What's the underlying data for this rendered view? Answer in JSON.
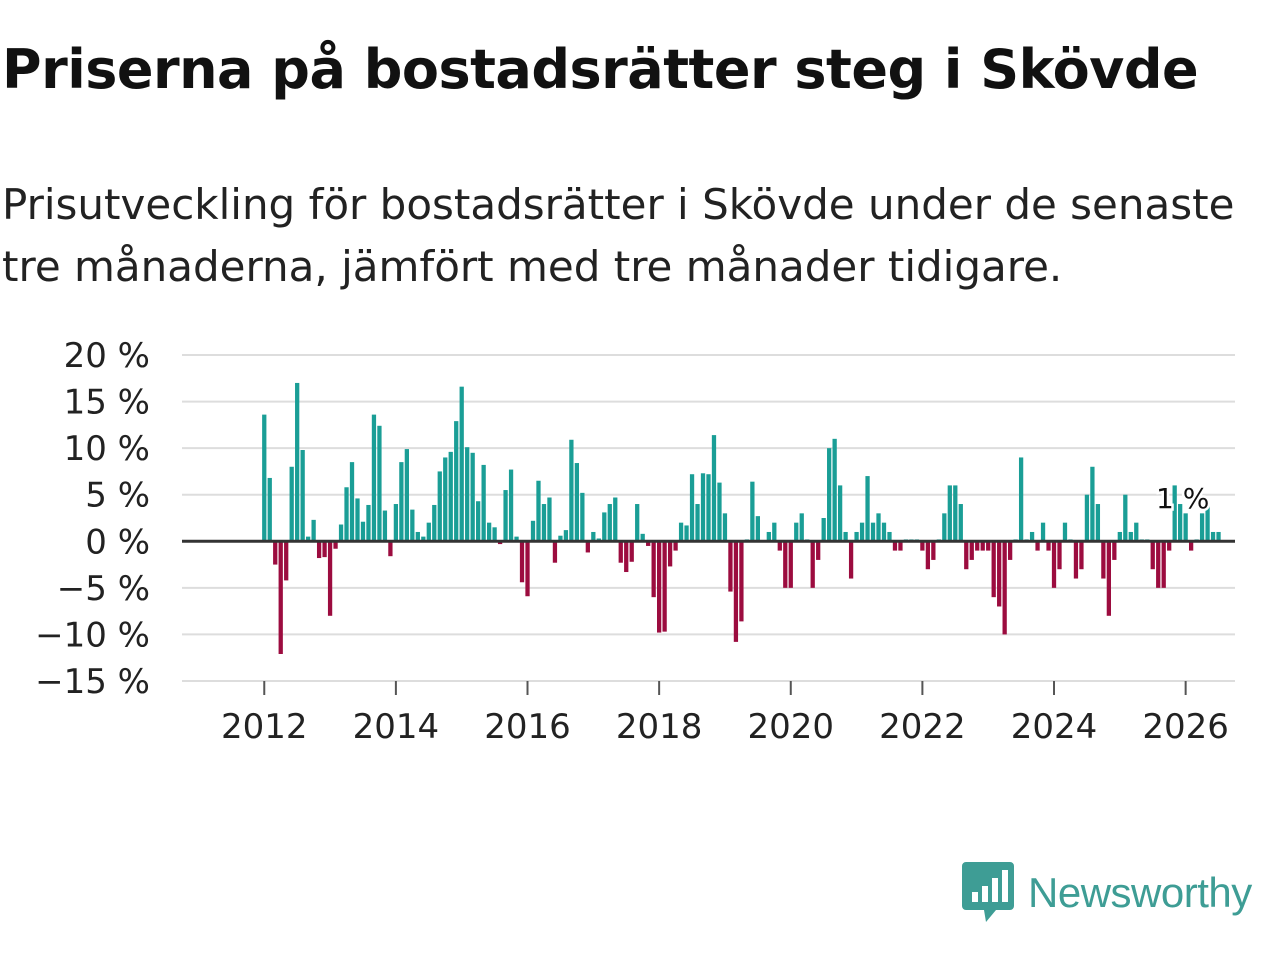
{
  "title": "Priserna på bostadsrätter steg i Skövde",
  "subtitle": "Prisutveckling för bostadsrätter i Skövde under de senaste tre månaderna, jämfört med tre månader tidigare.",
  "brand": "Newsworthy",
  "colors": {
    "positive": "#1a9e96",
    "negative": "#9c0c3f",
    "grid": "#dddddd",
    "zero_line": "#333333",
    "brand": "#3e9d95"
  },
  "chart_data": {
    "type": "bar",
    "title": "Priserna på bostadsrätter steg i Skövde",
    "xlabel": "",
    "ylabel": "",
    "ylim": [
      -15,
      20
    ],
    "yticks": [
      20,
      15,
      10,
      5,
      0,
      -5,
      -10,
      -15
    ],
    "ytick_labels": [
      "20 %",
      "15 %",
      "10 %",
      "5 %",
      "0 %",
      "−5 %",
      "−10 %",
      "−15 %"
    ],
    "xticks": [
      2012,
      2014,
      2016,
      2018,
      2020,
      2022,
      2024,
      2026
    ],
    "xtick_labels": [
      "2012",
      "2014",
      "2016",
      "2018",
      "2020",
      "2022",
      "2024",
      "2026"
    ],
    "x_range": [
      2010.75,
      2026.75
    ],
    "last_label": "1 %",
    "series": [
      {
        "name": "Prisutveckling",
        "start": "2012-01",
        "frequency": "monthly",
        "values": [
          13.6,
          6.8,
          -2.5,
          -12.1,
          -4.2,
          8.0,
          17.0,
          9.8,
          0.5,
          2.3,
          -1.8,
          -1.7,
          -8.0,
          -0.8,
          1.8,
          5.8,
          8.5,
          4.6,
          2.1,
          3.9,
          13.6,
          12.4,
          3.3,
          -1.6,
          4.0,
          8.5,
          9.9,
          3.4,
          1.0,
          0.5,
          2.0,
          3.9,
          7.5,
          9.0,
          9.6,
          12.9,
          16.6,
          10.1,
          9.5,
          4.3,
          8.2,
          2.0,
          1.5,
          -0.3,
          5.5,
          7.7,
          0.5,
          -4.4,
          -5.9,
          2.2,
          6.5,
          4.0,
          4.7,
          -2.3,
          0.6,
          1.2,
          10.9,
          8.4,
          5.2,
          -1.2,
          1.0,
          0.3,
          3.1,
          4.0,
          4.7,
          -2.3,
          -3.3,
          -2.2,
          4.0,
          0.8,
          -0.5,
          -6.0,
          -9.8,
          -9.7,
          -2.7,
          -1.0,
          2.0,
          1.7,
          7.2,
          4.0,
          7.3,
          7.2,
          11.4,
          6.3,
          3.0,
          -5.4,
          -10.8,
          -8.6,
          0.2,
          6.4,
          2.7,
          0.1,
          1.0,
          2.0,
          -1.0,
          -5.0,
          -5.0,
          2.0,
          3.0,
          0.2,
          -5.0,
          -2.0,
          2.5,
          10.0,
          11.0,
          6.0,
          1.0,
          -4.0,
          1.0,
          2.0,
          7.0,
          2.0,
          3.0,
          2.0,
          1.0,
          -1.0,
          -1.0,
          0.2,
          0.2,
          0.2,
          -1.0,
          -3.0,
          -2.0,
          0.2,
          3.0,
          6.0,
          6.0,
          4.0,
          -3.0,
          -2.0,
          -1.0,
          -1.0,
          -1.0,
          -6.0,
          -7.0,
          -10.0,
          -2.0,
          0.2,
          9.0,
          0.2,
          1.0,
          -1.0,
          2.0,
          -1.0,
          -5.0,
          -3.0,
          2.0,
          0.2,
          -4.0,
          -3.0,
          5.0,
          8.0,
          4.0,
          -4.0,
          -8.0,
          -2.0,
          1.0,
          5.0,
          1.0,
          2.0,
          0.2,
          0.2,
          -3.0,
          -5.0,
          -5.0,
          -1.0,
          6.0,
          4.0,
          3.0,
          -1.0,
          0.2,
          3.0,
          4.0,
          1.0,
          1.0
        ]
      }
    ]
  }
}
